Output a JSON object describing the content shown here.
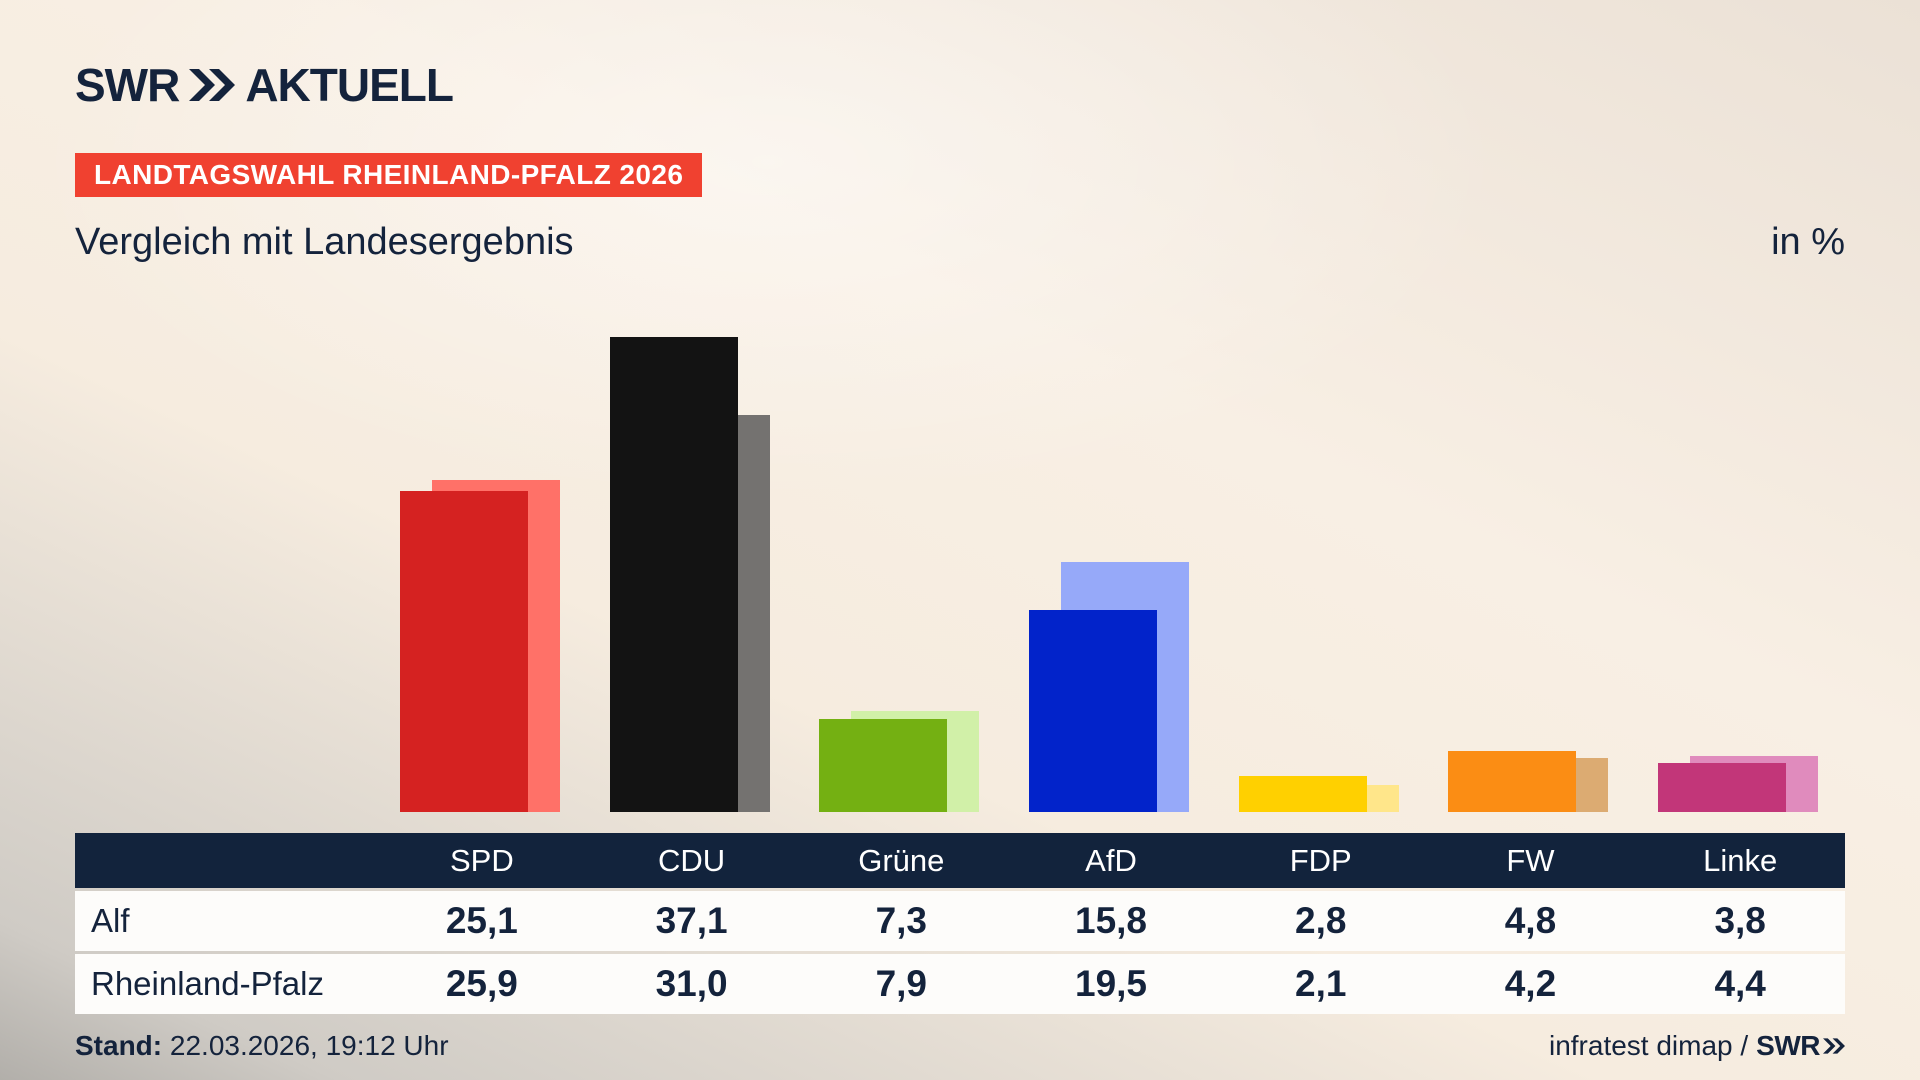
{
  "brand": {
    "swr": "SWR",
    "suffix": "AKTUELL"
  },
  "banner": {
    "text": "LANDTAGSWAHL RHEINLAND-PFALZ 2026",
    "bg_color": "#f04130",
    "text_color": "#ffffff"
  },
  "subtitle": "Vergleich mit Landesergebnis",
  "unit_label": "in %",
  "chart_data": {
    "type": "bar",
    "title": "Vergleich mit Landesergebnis",
    "subtitle_banner": "LANDTAGSWAHL RHEINLAND-PFALZ 2026",
    "unit": "in %",
    "categories": [
      "SPD",
      "CDU",
      "Grüne",
      "AfD",
      "FDP",
      "FW",
      "Linke"
    ],
    "series": [
      {
        "name": "Alf",
        "values": [
          25.1,
          37.1,
          7.3,
          15.8,
          2.8,
          4.8,
          3.8
        ]
      },
      {
        "name": "Rheinland-Pfalz",
        "values": [
          25.9,
          31.0,
          7.9,
          19.5,
          2.1,
          4.2,
          4.4
        ]
      }
    ],
    "colors": {
      "foreground_alf": [
        "#d52221",
        "#131313",
        "#74b012",
        "#0223ca",
        "#ffd000",
        "#fb8d14",
        "#c23679"
      ],
      "background_rlp": [
        "#ff7168",
        "#747270",
        "#d1f0a8",
        "#96a9f9",
        "#ffe68a",
        "#dcab72",
        "#e08bbd"
      ]
    },
    "ylim": [
      0,
      40
    ],
    "grid": false,
    "legend_position": "table-below"
  },
  "table": {
    "columns": [
      "SPD",
      "CDU",
      "Grüne",
      "AfD",
      "FDP",
      "FW",
      "Linke"
    ],
    "row_labels": [
      "Alf",
      "Rheinland-Pfalz"
    ],
    "rows": [
      [
        "25,1",
        "37,1",
        "7,3",
        "15,8",
        "2,8",
        "4,8",
        "3,8"
      ],
      [
        "25,9",
        "31,0",
        "7,9",
        "19,5",
        "2,1",
        "4,2",
        "4,4"
      ]
    ],
    "header_bg": "#12233c",
    "row_bg": "#fdfcfa"
  },
  "footer": {
    "stand_label": "Stand:",
    "stand_value": "22.03.2026, 19:12 Uhr",
    "source_prefix": "infratest dimap /",
    "source_logo": "SWR"
  }
}
